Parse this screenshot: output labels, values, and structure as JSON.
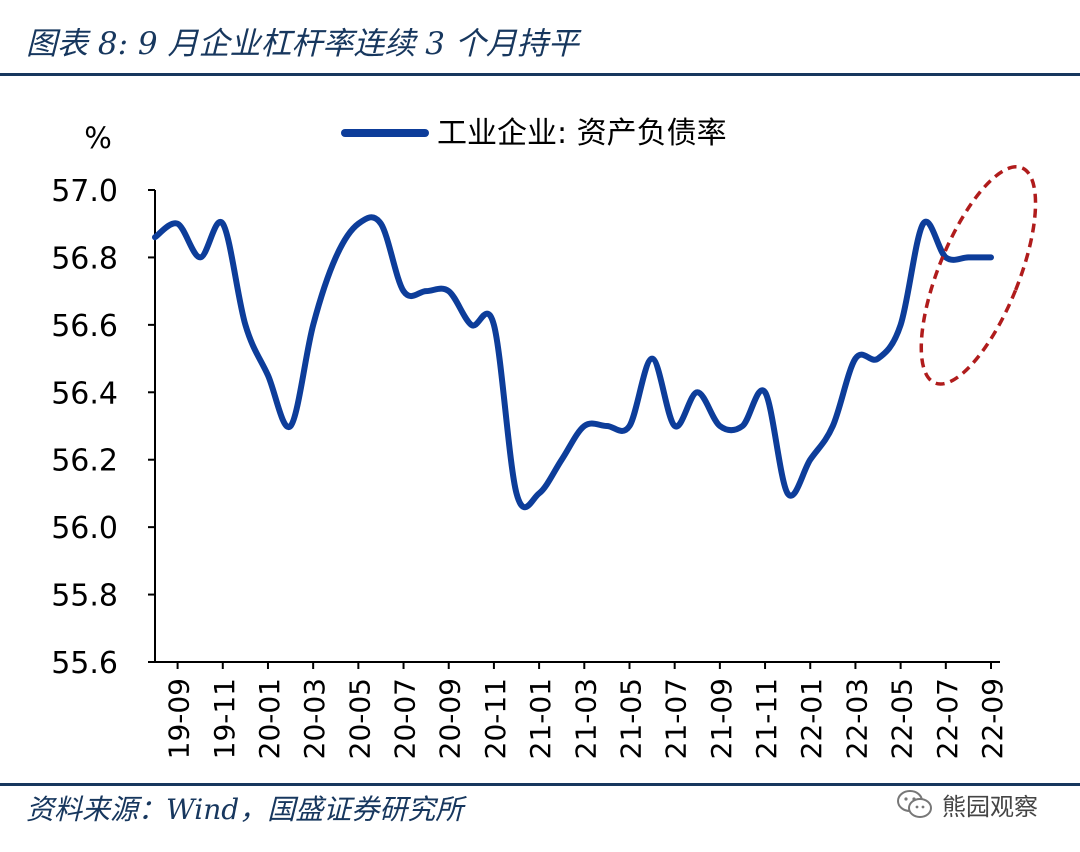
{
  "figure_title": "图表 8:  9 月企业杠杆率连续 3 个月持平",
  "source_note": "资料来源：Wind，国盛证券研究所",
  "watermark": {
    "text": "熊园观察",
    "icon": "wechat-icon"
  },
  "colors": {
    "series": "#0d3d9a",
    "axis": "#000000",
    "highlight": "#b01c1c",
    "rule": "#17375e"
  },
  "chart_data": {
    "type": "line",
    "y_unit_label": "%",
    "ylim": [
      55.6,
      57.0
    ],
    "y_ticks": [
      "57.0",
      "56.8",
      "56.6",
      "56.4",
      "56.2",
      "56.0",
      "55.8",
      "55.6"
    ],
    "y_tick_values": [
      57.0,
      56.8,
      56.6,
      56.4,
      56.2,
      56.0,
      55.8,
      55.6
    ],
    "x_tick_labels": [
      "19-09",
      "19-11",
      "20-01",
      "20-03",
      "20-05",
      "20-07",
      "20-09",
      "20-11",
      "21-01",
      "21-03",
      "21-05",
      "21-07",
      "21-09",
      "21-11",
      "22-01",
      "22-03",
      "22-05",
      "22-07",
      "22-09"
    ],
    "grid": false,
    "legend_position": "top-center",
    "series": [
      {
        "name": "工业企业: 资产负债率",
        "x": [
          "19-08",
          "19-09",
          "19-10",
          "19-11",
          "19-12",
          "20-01",
          "20-02",
          "20-03",
          "20-04",
          "20-05",
          "20-06",
          "20-07",
          "20-08",
          "20-09",
          "20-10",
          "20-11",
          "20-12",
          "21-01",
          "21-02",
          "21-03",
          "21-04",
          "21-05",
          "21-06",
          "21-07",
          "21-08",
          "21-09",
          "21-10",
          "21-11",
          "21-12",
          "22-01",
          "22-02",
          "22-03",
          "22-04",
          "22-05",
          "22-06",
          "22-07",
          "22-08",
          "22-09"
        ],
        "values": [
          56.86,
          56.9,
          56.8,
          56.9,
          56.6,
          56.45,
          56.3,
          56.6,
          56.8,
          56.9,
          56.9,
          56.7,
          56.7,
          56.7,
          56.6,
          56.6,
          56.1,
          56.1,
          56.2,
          56.3,
          56.3,
          56.3,
          56.5,
          56.3,
          56.4,
          56.3,
          56.3,
          56.4,
          56.1,
          56.2,
          56.3,
          56.5,
          56.5,
          56.6,
          56.9,
          56.8,
          56.8,
          56.8
        ]
      }
    ],
    "annotation": {
      "shape": "dashed-ellipse",
      "marks_range": [
        "22-07",
        "22-09"
      ]
    }
  }
}
